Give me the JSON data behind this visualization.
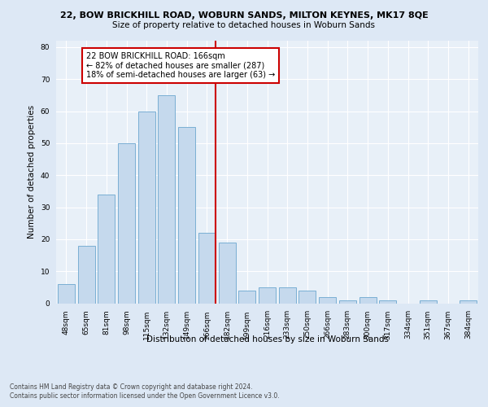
{
  "title1": "22, BOW BRICKHILL ROAD, WOBURN SANDS, MILTON KEYNES, MK17 8QE",
  "title2": "Size of property relative to detached houses in Woburn Sands",
  "xlabel": "Distribution of detached houses by size in Woburn Sands",
  "ylabel": "Number of detached properties",
  "categories": [
    "48sqm",
    "65sqm",
    "81sqm",
    "98sqm",
    "115sqm",
    "132sqm",
    "149sqm",
    "166sqm",
    "182sqm",
    "199sqm",
    "216sqm",
    "233sqm",
    "250sqm",
    "266sqm",
    "283sqm",
    "300sqm",
    "317sqm",
    "334sqm",
    "351sqm",
    "367sqm",
    "384sqm"
  ],
  "values": [
    6,
    18,
    34,
    50,
    60,
    65,
    55,
    22,
    19,
    4,
    5,
    5,
    4,
    2,
    1,
    2,
    1,
    0,
    1,
    0,
    1
  ],
  "bar_color": "#c5d9ed",
  "bar_edge_color": "#7aafd4",
  "vline_index": 7,
  "vline_color": "#cc0000",
  "annotation_text": "22 BOW BRICKHILL ROAD: 166sqm\n← 82% of detached houses are smaller (287)\n18% of semi-detached houses are larger (63) →",
  "annotation_box_color": "#ffffff",
  "annotation_box_edge": "#cc0000",
  "ylim": [
    0,
    82
  ],
  "yticks": [
    0,
    10,
    20,
    30,
    40,
    50,
    60,
    70,
    80
  ],
  "footer1": "Contains HM Land Registry data © Crown copyright and database right 2024.",
  "footer2": "Contains public sector information licensed under the Open Government Licence v3.0.",
  "bg_color": "#dde8f5",
  "plot_bg_color": "#e8f0f8",
  "title1_fontsize": 8.0,
  "title2_fontsize": 7.5,
  "xlabel_fontsize": 7.5,
  "ylabel_fontsize": 7.5,
  "tick_fontsize": 6.5,
  "footer_fontsize": 5.5,
  "ann_fontsize": 7.0
}
